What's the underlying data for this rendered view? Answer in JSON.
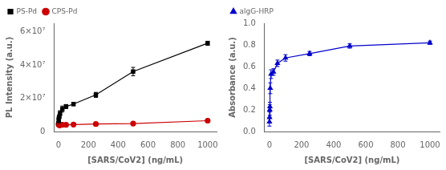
{
  "chart_data": [
    {
      "type": "line",
      "x_label": "[SARS/CoV2] (ng/mL)",
      "y_label": "PL Intensity (a.u.)",
      "series": [
        {
          "name": "PS-Pd",
          "color": "#000000",
          "marker": "square",
          "line_style": "solid",
          "x": [
            0,
            1,
            2,
            5,
            10,
            25,
            50,
            100,
            250,
            500,
            1000
          ],
          "values": [
            5000000.0,
            7000000.0,
            8000000.0,
            9000000.0,
            11000000.0,
            13500000.0,
            15000000.0,
            16500000.0,
            22000000.0,
            36000000.0,
            53000000.0
          ],
          "yerr": [
            500000.0,
            800000.0,
            600000.0,
            700000.0,
            1500000.0,
            1800000.0,
            1200000.0,
            1000000.0,
            1500000.0,
            2500000.0,
            1200000.0
          ]
        },
        {
          "name": "CPS-Pd",
          "color": "#cc0000",
          "marker": "circle",
          "line_style": "solid",
          "x": [
            0,
            1,
            2,
            5,
            10,
            25,
            50,
            100,
            250,
            500,
            1000
          ],
          "values": [
            4500000.0,
            4200000.0,
            4000000.0,
            3800000.0,
            3800000.0,
            4000000.0,
            4000000.0,
            4200000.0,
            4500000.0,
            4800000.0,
            6500000.0
          ],
          "yerr": [
            300000.0,
            200000.0,
            200000.0,
            200000.0,
            200000.0,
            200000.0,
            200000.0,
            200000.0,
            200000.0,
            200000.0,
            300000.0
          ]
        }
      ],
      "xlim": [
        -30,
        1060
      ],
      "xticks": [
        0,
        200,
        400,
        600,
        800,
        1000
      ],
      "ylim": [
        0,
        65000000.0
      ],
      "yticks": [
        0,
        {
          "value": 20000000.0,
          "label": "2×10⁷"
        },
        {
          "value": 40000000.0,
          "label": "4×10⁷"
        },
        {
          "value": 60000000.0,
          "label": "6×10⁷"
        }
      ],
      "grid": false,
      "legend": "upper left"
    },
    {
      "type": "line",
      "x_label": "[SARS/CoV2] (ng/mL)",
      "y_label": "Absorbance (a.u.)",
      "series": [
        {
          "name": "algG-HRP",
          "color": "#0000cc",
          "marker": "triangle",
          "line_style": "solid",
          "x": [
            0,
            1,
            2,
            3,
            5,
            10,
            25,
            50,
            100,
            250,
            500,
            1000
          ],
          "values": [
            0.09,
            0.13,
            0.2,
            0.23,
            0.4,
            0.53,
            0.55,
            0.63,
            0.68,
            0.72,
            0.79,
            0.82
          ],
          "yerr": [
            0.04,
            0.05,
            0.05,
            0.04,
            0.05,
            0.04,
            0.03,
            0.03,
            0.03,
            0.02,
            0.02,
            0.015
          ]
        }
      ],
      "xlim": [
        -30,
        1060
      ],
      "xticks": [
        0,
        200,
        400,
        600,
        800,
        1000
      ],
      "ylim": [
        0.0,
        1.0
      ],
      "yticks": [
        {
          "value": 0,
          "label": "0.0"
        },
        0.2,
        0.4,
        0.6,
        0.8,
        {
          "value": 1,
          "label": "1.0"
        }
      ],
      "grid": false,
      "legend": "upper left"
    }
  ]
}
